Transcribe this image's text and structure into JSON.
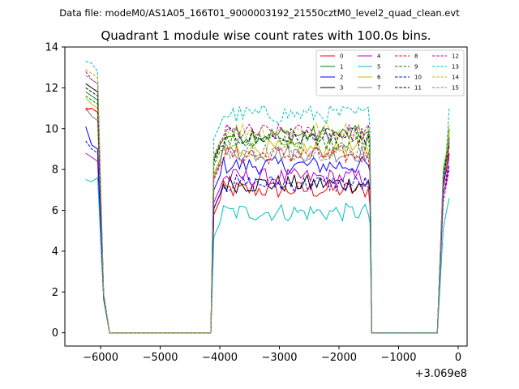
{
  "chart_data": {
    "type": "line",
    "suptitle": "Data file: modeM0/AS1A05_166T01_9000003192_21550cztM0_level2_quad_clean.evt",
    "title": "Quadrant 1 module wise count rates with 100.0s bins.",
    "xlabel": "",
    "ylabel": "",
    "x_offset_label": "+3.069e8",
    "xlim": [
      -6600,
      150
    ],
    "ylim": [
      -0.65,
      14
    ],
    "xticks": [
      -6000,
      -5000,
      -4000,
      -3000,
      -2000,
      -1000,
      0
    ],
    "xtick_labels": [
      "−6000",
      "−5000",
      "−4000",
      "−3000",
      "−2000",
      "−1000",
      "0"
    ],
    "yticks": [
      0,
      2,
      4,
      6,
      8,
      10,
      12,
      14
    ],
    "ytick_labels": [
      "0",
      "2",
      "4",
      "6",
      "8",
      "10",
      "12",
      "14"
    ],
    "legend_position": "top-right",
    "segments": [
      {
        "x_start": -6250,
        "x_end": -5850,
        "step": 100
      },
      {
        "x_start": -4150,
        "x_end": -1450,
        "step": 54
      },
      {
        "x_start": -1450,
        "x_end": -350,
        "step": 100
      },
      {
        "x_start": -350,
        "x_end": -150,
        "step": 100
      }
    ],
    "series": [
      {
        "name": "0",
        "color": "#ff0000",
        "dash": false,
        "first_seg": [
          10.9,
          11.0,
          10.8,
          1.8,
          0
        ],
        "plateau": 7.0,
        "end": [
          0,
          7.6,
          8.2,
          8.5
        ]
      },
      {
        "name": "1",
        "color": "#008000",
        "dash": false,
        "first_seg": [
          11.8,
          11.6,
          11.4,
          1.8,
          0
        ],
        "plateau": 9.7,
        "end": [
          0,
          7.8,
          8.6,
          10.0
        ]
      },
      {
        "name": "2",
        "color": "#0000ff",
        "dash": false,
        "first_seg": [
          10.1,
          9.2,
          9.0,
          1.7,
          0
        ],
        "plateau": 8.2,
        "end": [
          0,
          7.2,
          8.0,
          9.5
        ]
      },
      {
        "name": "3",
        "color": "#000000",
        "dash": false,
        "first_seg": [
          12.2,
          12.0,
          11.8,
          1.9,
          0
        ],
        "plateau": 7.3,
        "end": [
          0,
          7.3,
          8.2,
          8.8
        ]
      },
      {
        "name": "4",
        "color": "#bf00bf",
        "dash": false,
        "first_seg": [
          8.8,
          8.6,
          8.4,
          1.7,
          0
        ],
        "plateau": 7.6,
        "end": [
          0,
          6.8,
          7.4,
          8.8
        ]
      },
      {
        "name": "5",
        "color": "#00bfbf",
        "dash": false,
        "first_seg": [
          7.5,
          7.4,
          7.6,
          1.6,
          0
        ],
        "plateau": 5.9,
        "end": [
          0,
          5.1,
          5.9,
          6.6
        ]
      },
      {
        "name": "6",
        "color": "#bfbf00",
        "dash": false,
        "first_seg": [
          11.5,
          11.2,
          11.0,
          1.8,
          0
        ],
        "plateau": 9.0,
        "end": [
          0,
          7.9,
          8.4,
          9.8
        ]
      },
      {
        "name": "7",
        "color": "#808080",
        "dash": false,
        "first_seg": [
          11.0,
          10.6,
          10.4,
          1.8,
          0
        ],
        "plateau": 8.8,
        "end": [
          0,
          7.5,
          8.1,
          9.2
        ]
      },
      {
        "name": "8",
        "color": "#ff0000",
        "dash": true,
        "first_seg": [
          11.0,
          11.0,
          10.8,
          1.8,
          0
        ],
        "plateau": 8.7,
        "end": [
          0,
          7.1,
          7.6,
          9.6
        ]
      },
      {
        "name": "9",
        "color": "#008000",
        "dash": true,
        "first_seg": [
          11.6,
          11.4,
          11.2,
          1.8,
          0
        ],
        "plateau": 9.4,
        "end": [
          0,
          7.8,
          8.4,
          9.3
        ]
      },
      {
        "name": "10",
        "color": "#0000ff",
        "dash": true,
        "first_seg": [
          9.4,
          9.0,
          8.8,
          1.7,
          0
        ],
        "plateau": 7.3,
        "end": [
          0,
          6.9,
          7.3,
          8.2
        ]
      },
      {
        "name": "11",
        "color": "#000000",
        "dash": true,
        "first_seg": [
          12.0,
          11.8,
          11.6,
          1.9,
          0
        ],
        "plateau": 9.6,
        "end": [
          0,
          7.6,
          8.5,
          9.2
        ]
      },
      {
        "name": "12",
        "color": "#bf00bf",
        "dash": true,
        "first_seg": [
          12.8,
          12.4,
          12.2,
          1.9,
          0
        ],
        "plateau": 9.8,
        "end": [
          0,
          6.4,
          7.2,
          8.0
        ]
      },
      {
        "name": "13",
        "color": "#00bfbf",
        "dash": true,
        "first_seg": [
          13.3,
          13.2,
          12.8,
          1.9,
          0
        ],
        "plateau": 10.7,
        "end": [
          0,
          8.0,
          8.8,
          11.0
        ]
      },
      {
        "name": "14",
        "color": "#bfbf00",
        "dash": true,
        "first_seg": [
          12.9,
          12.7,
          12.5,
          1.9,
          0
        ],
        "plateau": 9.9,
        "end": [
          0,
          8.1,
          8.8,
          10.2
        ]
      },
      {
        "name": "15",
        "color": "#808080",
        "dash": true,
        "first_seg": [
          12.6,
          12.4,
          12.2,
          1.9,
          0
        ],
        "plateau": 8.9,
        "end": [
          0,
          7.6,
          8.3,
          9.6
        ]
      }
    ]
  }
}
